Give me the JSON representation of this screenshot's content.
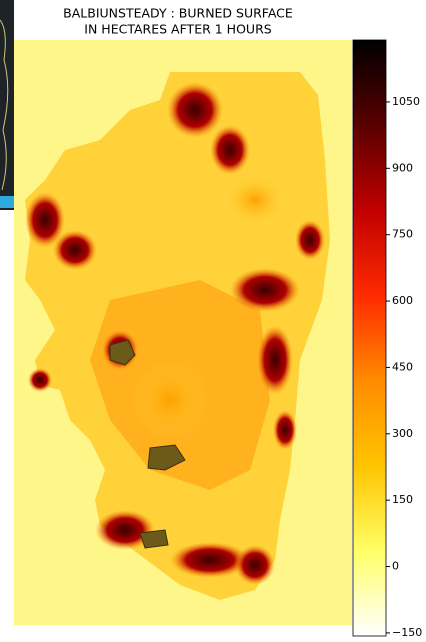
{
  "chart_data": {
    "type": "heatmap",
    "title": [
      "BALBIUNSTEADY : BURNED SURFACE",
      "IN HECTARES AFTER 1 HOURS"
    ],
    "colorbar": {
      "lim": [
        -157,
        1190
      ],
      "ticks": [
        {
          "value": -150,
          "label": "−150"
        },
        0,
        150,
        300,
        450,
        600,
        750,
        900,
        1050
      ],
      "colormap": [
        "#ffffff",
        "#ffff66",
        "#ffc400",
        "#ff8c00",
        "#ff2a00",
        "#c00000",
        "#5a0000",
        "#000000"
      ]
    }
  }
}
